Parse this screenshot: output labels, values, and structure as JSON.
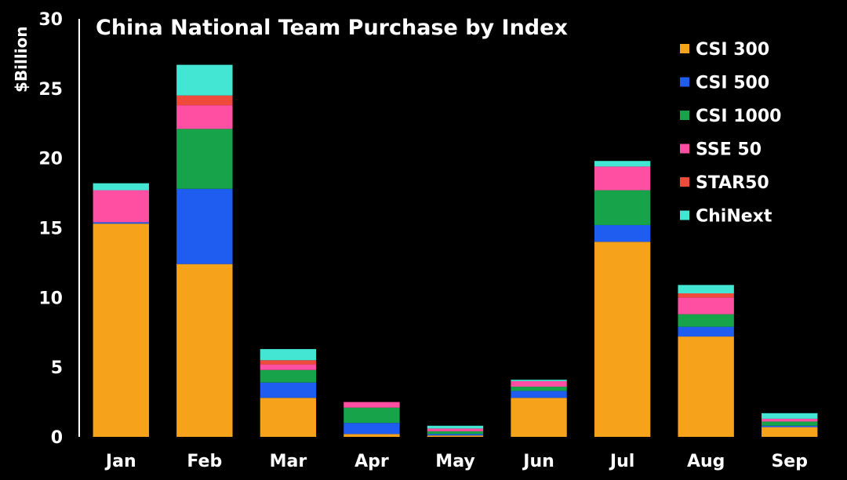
{
  "chart_data": {
    "type": "bar",
    "stacked": true,
    "title": "China National Team Purchase by Index",
    "ylabel": "$Billion",
    "xlabel": "",
    "ylim": [
      0,
      30
    ],
    "yticks": [
      0,
      5,
      10,
      15,
      20,
      25,
      30
    ],
    "categories": [
      "Jan",
      "Feb",
      "Mar",
      "Apr",
      "May",
      "Jun",
      "Jul",
      "Aug",
      "Sep"
    ],
    "legend_position": "top-right",
    "grid": false,
    "series": [
      {
        "name": "CSI 300",
        "color": "#F7A21B",
        "values": [
          15.3,
          12.4,
          2.8,
          0.2,
          0.1,
          2.8,
          14.0,
          7.2,
          0.7
        ]
      },
      {
        "name": "CSI 500",
        "color": "#1F5CF0",
        "values": [
          0.1,
          5.4,
          1.1,
          0.8,
          0.1,
          0.5,
          1.2,
          0.7,
          0.1
        ]
      },
      {
        "name": "CSI 1000",
        "color": "#16A34A",
        "values": [
          0.0,
          4.3,
          0.9,
          1.1,
          0.2,
          0.3,
          2.5,
          0.9,
          0.3
        ]
      },
      {
        "name": "SSE 50",
        "color": "#FF4FA3",
        "values": [
          2.3,
          1.7,
          0.4,
          0.4,
          0.2,
          0.4,
          1.7,
          1.2,
          0.2
        ]
      },
      {
        "name": "STAR50",
        "color": "#EF4B3C",
        "values": [
          0.0,
          0.7,
          0.3,
          0.0,
          0.0,
          0.0,
          0.0,
          0.3,
          0.0
        ]
      },
      {
        "name": "ChiNext",
        "color": "#43E6D2",
        "values": [
          0.5,
          2.2,
          0.8,
          0.0,
          0.2,
          0.1,
          0.4,
          0.6,
          0.4
        ]
      }
    ]
  }
}
